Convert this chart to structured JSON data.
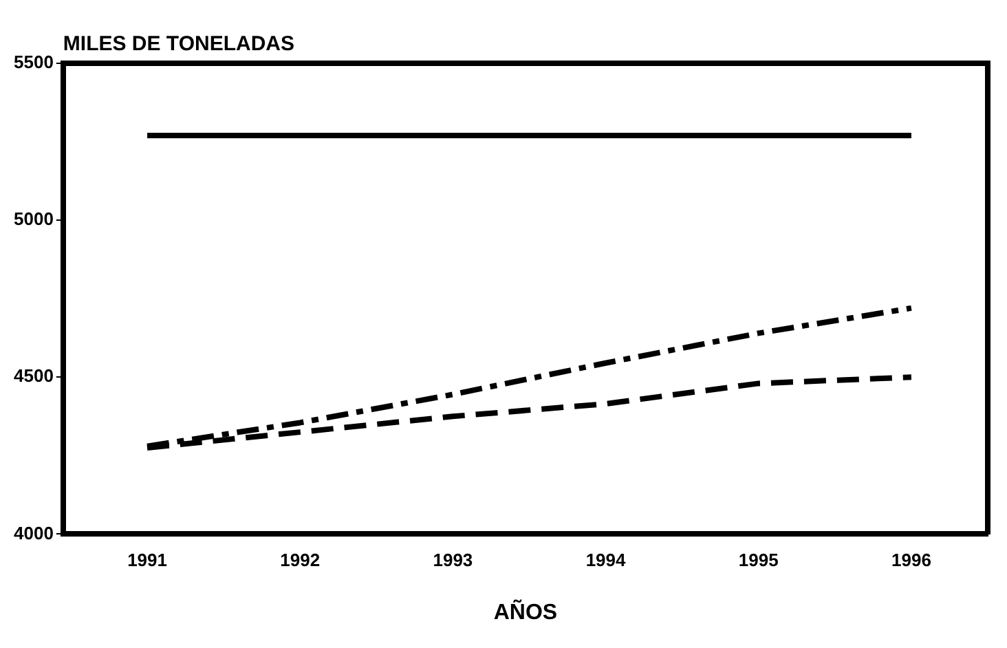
{
  "chart_data": {
    "type": "line",
    "ylabel": "MILES DE TONELADAS",
    "xlabel": "AÑOS",
    "x": [
      1991,
      1992,
      1993,
      1994,
      1995,
      1996
    ],
    "series": [
      {
        "color": "#000000",
        "line_style": "solid",
        "values": [
          5270,
          5270,
          5270,
          5270,
          5270,
          5270
        ]
      },
      {
        "color": "#000000",
        "line_style": "dashdot",
        "values": [
          4280,
          4355,
          4445,
          4545,
          4640,
          4720
        ]
      },
      {
        "color": "#000000",
        "line_style": "dashed",
        "values": [
          4275,
          4325,
          4375,
          4415,
          4480,
          4500
        ]
      }
    ],
    "xlim": [
      1990.45,
      1996.5
    ],
    "xticks": [
      1991,
      1992,
      1993,
      1994,
      1995,
      1996
    ],
    "ylim": [
      4000,
      5500
    ],
    "yticks": [
      4000,
      4500,
      5000,
      5500
    ],
    "grid": false,
    "legend": false,
    "marker": "none"
  }
}
